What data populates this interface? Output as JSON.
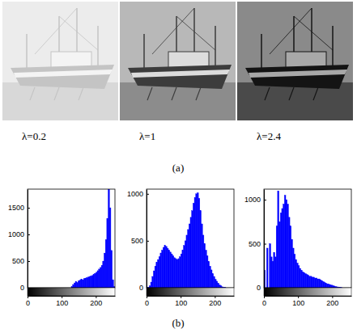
{
  "captions": [
    "λ=0.2",
    "λ=1",
    "λ=2.4"
  ],
  "panel_labels": [
    "(a)",
    "(b)"
  ],
  "chart_data": [
    {
      "type": "histogram",
      "color": "#0000ff",
      "bins": [
        128,
        132,
        136,
        140,
        144,
        148,
        152,
        156,
        160,
        164,
        168,
        172,
        176,
        180,
        184,
        188,
        192,
        196,
        200,
        204,
        208,
        212,
        216,
        220,
        224,
        228,
        232,
        236,
        240,
        244,
        248,
        252,
        256
      ],
      "counts": [
        20,
        60,
        90,
        120,
        100,
        130,
        140,
        160,
        150,
        170,
        180,
        190,
        200,
        210,
        220,
        230,
        250,
        270,
        290,
        320,
        350,
        380,
        420,
        500,
        650,
        900,
        1300,
        1850,
        1500,
        700,
        150,
        20
      ],
      "xlim": [
        0,
        256
      ],
      "xticks": [
        0,
        100,
        200
      ],
      "ylim": [
        0,
        1850
      ],
      "yticks": [
        0,
        500,
        1000,
        1500
      ]
    },
    {
      "type": "histogram",
      "color": "#0000ff",
      "bins": [
        0,
        4,
        8,
        12,
        16,
        20,
        24,
        28,
        32,
        36,
        40,
        44,
        48,
        52,
        56,
        60,
        64,
        68,
        72,
        76,
        80,
        84,
        88,
        92,
        96,
        100,
        104,
        108,
        112,
        116,
        120,
        124,
        128,
        132,
        136,
        140,
        144,
        148,
        152,
        156,
        160,
        164,
        168,
        172,
        176,
        180,
        184,
        188,
        192,
        196,
        200,
        204,
        208,
        212,
        216,
        220,
        224,
        228,
        232,
        236,
        240,
        244,
        248,
        252,
        256
      ],
      "counts": [
        0,
        5,
        20,
        60,
        120,
        180,
        230,
        270,
        300,
        330,
        370,
        400,
        430,
        450,
        440,
        420,
        400,
        380,
        360,
        340,
        320,
        310,
        300,
        310,
        330,
        360,
        400,
        450,
        500,
        560,
        620,
        680,
        750,
        820,
        900,
        960,
        1000,
        1010,
        950,
        820,
        680,
        560,
        470,
        400,
        340,
        280,
        230,
        190,
        150,
        120,
        90,
        70,
        50,
        30,
        20,
        10,
        5,
        2,
        0,
        0,
        0,
        0,
        0,
        0
      ],
      "xlim": [
        0,
        256
      ],
      "xticks": [
        0,
        100,
        200
      ],
      "ylim": [
        0,
        1050
      ],
      "yticks": [
        0,
        500,
        1000
      ]
    },
    {
      "type": "histogram",
      "color": "#0000ff",
      "bins": [
        0,
        4,
        8,
        12,
        16,
        20,
        24,
        28,
        32,
        36,
        40,
        44,
        48,
        52,
        56,
        60,
        64,
        68,
        72,
        76,
        80,
        84,
        88,
        92,
        96,
        100,
        104,
        108,
        112,
        116,
        120,
        124,
        128,
        132,
        136,
        140,
        144,
        148,
        152,
        156,
        160,
        164,
        168,
        172,
        176,
        180,
        184,
        188,
        192,
        196,
        200,
        204,
        208,
        212,
        216,
        220,
        224,
        228,
        232,
        236,
        240,
        244,
        248,
        252,
        256
      ],
      "counts": [
        200,
        0,
        450,
        0,
        500,
        350,
        300,
        400,
        350,
        700,
        1100,
        750,
        850,
        900,
        950,
        1050,
        1000,
        950,
        800,
        700,
        550,
        450,
        380,
        320,
        280,
        250,
        220,
        200,
        180,
        170,
        160,
        150,
        140,
        130,
        130,
        120,
        120,
        110,
        110,
        100,
        100,
        90,
        80,
        70,
        60,
        50,
        45,
        40,
        35,
        30,
        25,
        20,
        15,
        10,
        8,
        5,
        3,
        0,
        0,
        0,
        0,
        0,
        0,
        0
      ],
      "xlim": [
        0,
        256
      ],
      "xticks": [
        0,
        100,
        200
      ],
      "ylim": [
        0,
        1120
      ],
      "yticks": [
        0,
        500,
        1000
      ]
    }
  ]
}
